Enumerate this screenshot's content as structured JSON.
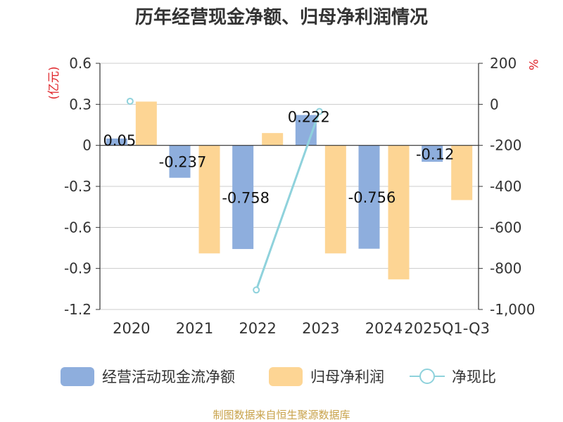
{
  "title": "历年经营现金净额、归母净利润情况",
  "source_note": "制图数据来自恒生聚源数据库",
  "colors": {
    "cash": "#8eaedd",
    "profit": "#fdd594",
    "ratio": "#8fd2dc",
    "unit": "#e0262b",
    "text": "#333333",
    "source": "#c8a24a"
  },
  "chart_data": {
    "type": "bar",
    "title": "历年经营现金净额、归母净利润情况",
    "categories": [
      "2020",
      "2021",
      "2022",
      "2023",
      "2024",
      "2025Q1-Q3"
    ],
    "series": [
      {
        "name": "经营活动现金流净额",
        "type": "bar",
        "axis": "left",
        "values": [
          0.05,
          -0.237,
          -0.758,
          0.222,
          -0.756,
          -0.12
        ],
        "labels": [
          "0.05",
          "-0.237",
          "-0.758",
          "0.222",
          "-0.756",
          "-0.12"
        ]
      },
      {
        "name": "归母净利润",
        "type": "bar",
        "axis": "left",
        "values": [
          0.32,
          -0.79,
          0.09,
          -0.79,
          -0.98,
          -0.4
        ]
      },
      {
        "name": "净现比",
        "type": "line",
        "axis": "right",
        "values": [
          15,
          null,
          -905,
          -35,
          null,
          null
        ]
      }
    ],
    "left_axis": {
      "unit": "(亿元)",
      "ylim": [
        -1.2,
        0.6
      ],
      "ticks": [
        0.6,
        0.3,
        0,
        -0.3,
        -0.6,
        -0.9,
        -1.2
      ],
      "tick_labels": [
        "0.6",
        "0.3",
        "0",
        "-0.3",
        "-0.6",
        "-0.9",
        "-1.2"
      ]
    },
    "right_axis": {
      "unit": "%",
      "ylim": [
        -1000,
        200
      ],
      "ticks": [
        200,
        0,
        -200,
        -400,
        -600,
        -800,
        -1000
      ],
      "tick_labels": [
        "200",
        "0",
        "-200",
        "-400",
        "-600",
        "-800",
        "-1,000"
      ]
    },
    "legend": "bottom",
    "grid": true
  }
}
